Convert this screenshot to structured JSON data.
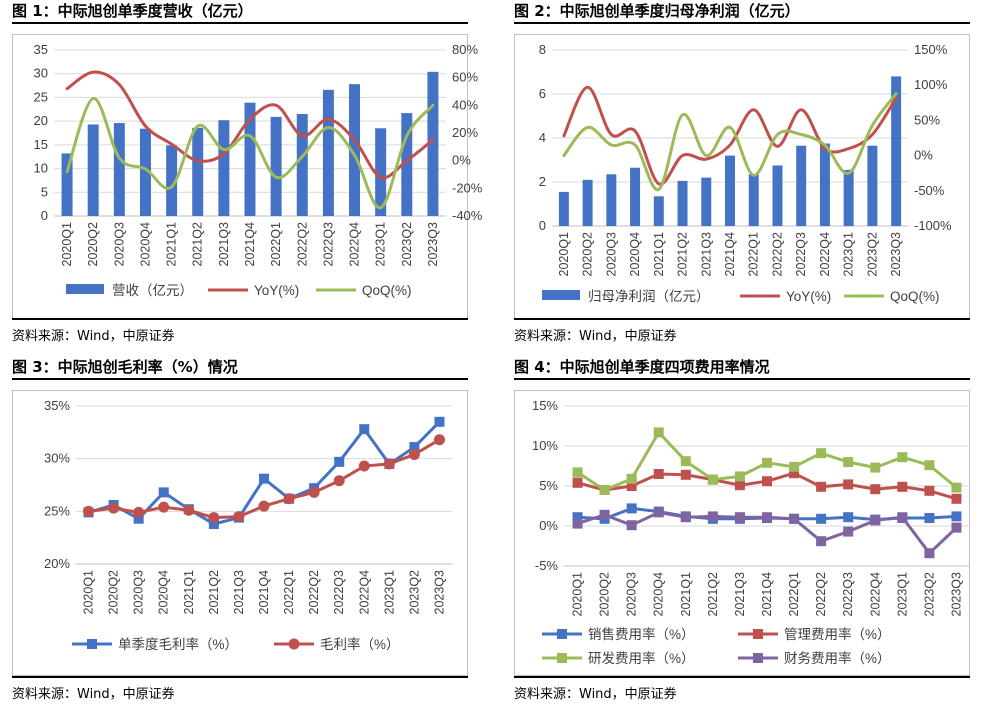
{
  "charts": [
    {
      "title": "图 1：中际旭创单季度营收（亿元）",
      "source": "资料来源：Wind，中原证券",
      "chart_data": {
        "type": "bar",
        "categories": [
          "2020Q1",
          "2020Q2",
          "2020Q3",
          "2020Q4",
          "2021Q1",
          "2021Q2",
          "2021Q3",
          "2021Q4",
          "2022Q1",
          "2022Q2",
          "2022Q3",
          "2022Q4",
          "2023Q1",
          "2023Q2",
          "2023Q3"
        ],
        "left_ticks": [
          "0",
          "5",
          "10",
          "15",
          "20",
          "25",
          "30",
          "35"
        ],
        "right_ticks": [
          "-40%",
          "-20%",
          "0%",
          "20%",
          "40%",
          "60%",
          "80%"
        ],
        "ylim": [
          0,
          35
        ],
        "y2lim": [
          -40,
          80
        ],
        "series": [
          {
            "name": "营收（亿元）",
            "kind": "bar",
            "axis": "left",
            "color": "#4472C4",
            "values": [
              13.2,
              19.3,
              19.6,
              18.4,
              14.9,
              18.6,
              20.2,
              23.9,
              20.9,
              21.5,
              26.6,
              27.8,
              18.5,
              21.7,
              30.4
            ]
          },
          {
            "name": "YoY(%)",
            "kind": "line",
            "axis": "right",
            "color": "#C0504D",
            "values": [
              52,
              64,
              55,
              25,
              12,
              0,
              5,
              30,
              40,
              18,
              30,
              15,
              -12,
              0,
              15
            ]
          },
          {
            "name": "QoQ(%)",
            "kind": "line",
            "axis": "right",
            "color": "#9BBB59",
            "values": [
              -8,
              45,
              2,
              -6,
              -19,
              25,
              8,
              18,
              -12,
              3,
              24,
              4,
              -34,
              18,
              40
            ]
          }
        ]
      }
    },
    {
      "title": "图 2：中际旭创单季度归母净利润（亿元）",
      "source": "资料来源：Wind，中原证券",
      "chart_data": {
        "type": "bar",
        "categories": [
          "2020Q1",
          "2020Q2",
          "2020Q3",
          "2020Q4",
          "2021Q1",
          "2021Q2",
          "2021Q3",
          "2021Q4",
          "2022Q1",
          "2022Q2",
          "2022Q3",
          "2022Q4",
          "2023Q1",
          "2023Q2",
          "2023Q3"
        ],
        "left_ticks": [
          "0",
          "2",
          "4",
          "6",
          "8"
        ],
        "right_ticks": [
          "-100%",
          "-50%",
          "0%",
          "50%",
          "100%",
          "150%"
        ],
        "ylim": [
          0,
          8
        ],
        "y2lim": [
          -100,
          150
        ],
        "series": [
          {
            "name": "归母净利润（亿元）",
            "kind": "bar",
            "axis": "left",
            "color": "#4472C4",
            "values": [
              1.55,
              2.1,
              2.35,
              2.65,
              1.35,
              2.05,
              2.2,
              3.2,
              2.35,
              2.75,
              3.65,
              3.75,
              2.55,
              3.65,
              6.8
            ]
          },
          {
            "name": "YoY(%)",
            "kind": "line",
            "axis": "right",
            "color": "#C0504D",
            "values": [
              28,
              97,
              30,
              35,
              -40,
              0,
              -5,
              15,
              65,
              13,
              65,
              10,
              10,
              30,
              82
            ]
          },
          {
            "name": "QoQ(%)",
            "kind": "line",
            "axis": "right",
            "color": "#9BBB59",
            "values": [
              0,
              40,
              15,
              15,
              -48,
              58,
              0,
              40,
              -28,
              30,
              30,
              15,
              -25,
              43,
              88
            ]
          }
        ]
      }
    },
    {
      "title": "图 3：中际旭创毛利率（%）情况",
      "source": "资料来源：Wind，中原证券",
      "chart_data": {
        "type": "line",
        "categories": [
          "2020Q1",
          "2020Q2",
          "2020Q3",
          "2020Q4",
          "2021Q1",
          "2021Q2",
          "2021Q3",
          "2021Q4",
          "2022Q1",
          "2022Q2",
          "2022Q3",
          "2022Q4",
          "2023Q1",
          "2023Q2",
          "2023Q3"
        ],
        "left_ticks": [
          "20%",
          "25%",
          "30%",
          "35%"
        ],
        "ylim": [
          20,
          35
        ],
        "series": [
          {
            "name": "单季度毛利率（%）",
            "marker": "square",
            "color": "#4472C4",
            "values": [
              24.9,
              25.6,
              24.3,
              26.8,
              25.2,
              23.8,
              24.4,
              28.1,
              26.2,
              27.2,
              29.7,
              32.8,
              29.5,
              31.1,
              33.5
            ]
          },
          {
            "name": "毛利率（%）",
            "marker": "circle",
            "color": "#C0504D",
            "values": [
              25.0,
              25.3,
              24.9,
              25.4,
              25.1,
              24.4,
              24.5,
              25.5,
              26.2,
              26.8,
              27.9,
              29.3,
              29.5,
              30.4,
              31.8
            ]
          }
        ]
      }
    },
    {
      "title": "图 4：中际旭创单季度四项费用率情况",
      "source": "资料来源：Wind，中原证券",
      "chart_data": {
        "type": "line",
        "categories": [
          "2020Q1",
          "2020Q2",
          "2020Q3",
          "2020Q4",
          "2021Q1",
          "2021Q2",
          "2021Q3",
          "2021Q4",
          "2022Q1",
          "2022Q2",
          "2022Q3",
          "2022Q4",
          "2023Q1",
          "2023Q2",
          "2023Q3"
        ],
        "left_ticks": [
          "-5%",
          "0%",
          "5%",
          "10%",
          "15%"
        ],
        "ylim": [
          -5,
          15
        ],
        "series": [
          {
            "name": "销售费用率（%）",
            "marker": "square",
            "color": "#4472C4",
            "values": [
              1.1,
              0.9,
              2.2,
              1.8,
              1.2,
              0.9,
              0.9,
              1.0,
              0.9,
              0.9,
              1.1,
              0.8,
              1.0,
              1.0,
              1.2
            ]
          },
          {
            "name": "管理费用率（%）",
            "marker": "square",
            "color": "#C0504D",
            "values": [
              5.4,
              4.5,
              5.0,
              6.5,
              6.4,
              5.8,
              5.1,
              5.6,
              6.6,
              4.9,
              5.2,
              4.6,
              4.9,
              4.4,
              3.4
            ]
          },
          {
            "name": "研发费用率（%）",
            "marker": "square",
            "color": "#9BBB59",
            "values": [
              6.7,
              4.5,
              5.9,
              11.7,
              8.1,
              5.8,
              6.2,
              7.9,
              7.4,
              9.1,
              8.0,
              7.3,
              8.6,
              7.6,
              4.8
            ]
          },
          {
            "name": "财务费用率（%）",
            "marker": "square",
            "color": "#8064A2",
            "values": [
              0.3,
              1.4,
              0.1,
              1.7,
              1.1,
              1.2,
              1.1,
              1.1,
              0.9,
              -1.9,
              -0.7,
              0.7,
              1.1,
              -3.4,
              -0.2
            ]
          }
        ]
      }
    }
  ]
}
